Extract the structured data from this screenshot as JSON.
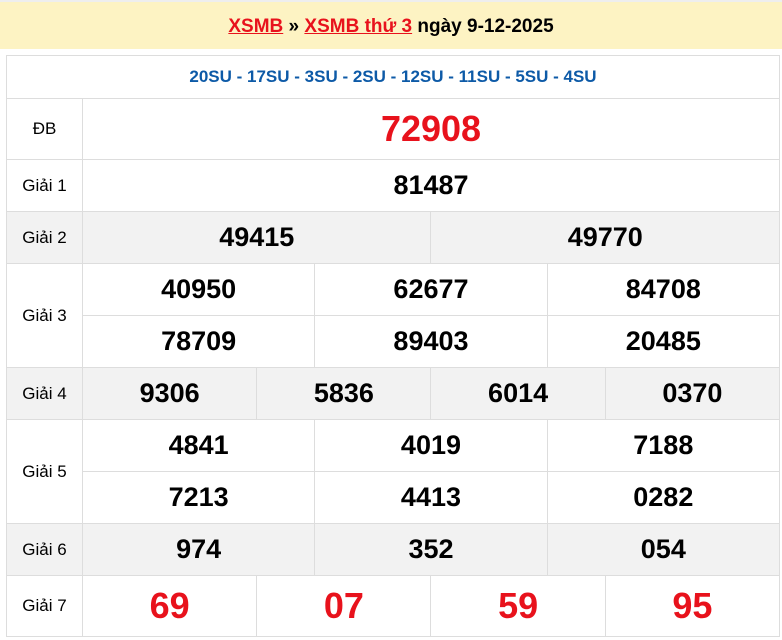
{
  "header": {
    "link1": "XSMB",
    "sep": "»",
    "link2": "XSMB thứ 3",
    "date_text": "ngày 9-12-2025"
  },
  "codes": "20SU - 17SU - 3SU - 2SU - 12SU - 11SU - 5SU - 4SU",
  "prizes": {
    "db": {
      "label": "ĐB",
      "numbers": [
        "72908"
      ]
    },
    "g1": {
      "label": "Giải 1",
      "numbers": [
        "81487"
      ]
    },
    "g2": {
      "label": "Giải 2",
      "numbers": [
        "49415",
        "49770"
      ]
    },
    "g3": {
      "label": "Giải 3",
      "numbers": [
        "40950",
        "62677",
        "84708",
        "78709",
        "89403",
        "20485"
      ]
    },
    "g4": {
      "label": "Giải 4",
      "numbers": [
        "9306",
        "5836",
        "6014",
        "0370"
      ]
    },
    "g5": {
      "label": "Giải 5",
      "numbers": [
        "4841",
        "4019",
        "7188",
        "7213",
        "4413",
        "0282"
      ]
    },
    "g6": {
      "label": "Giải 6",
      "numbers": [
        "974",
        "352",
        "054"
      ]
    },
    "g7": {
      "label": "Giải 7",
      "numbers": [
        "69",
        "07",
        "59",
        "95"
      ]
    }
  },
  "colors": {
    "accent": "#e8121c",
    "code": "#0d5aa7",
    "header_bg": "#fdf3c3"
  }
}
